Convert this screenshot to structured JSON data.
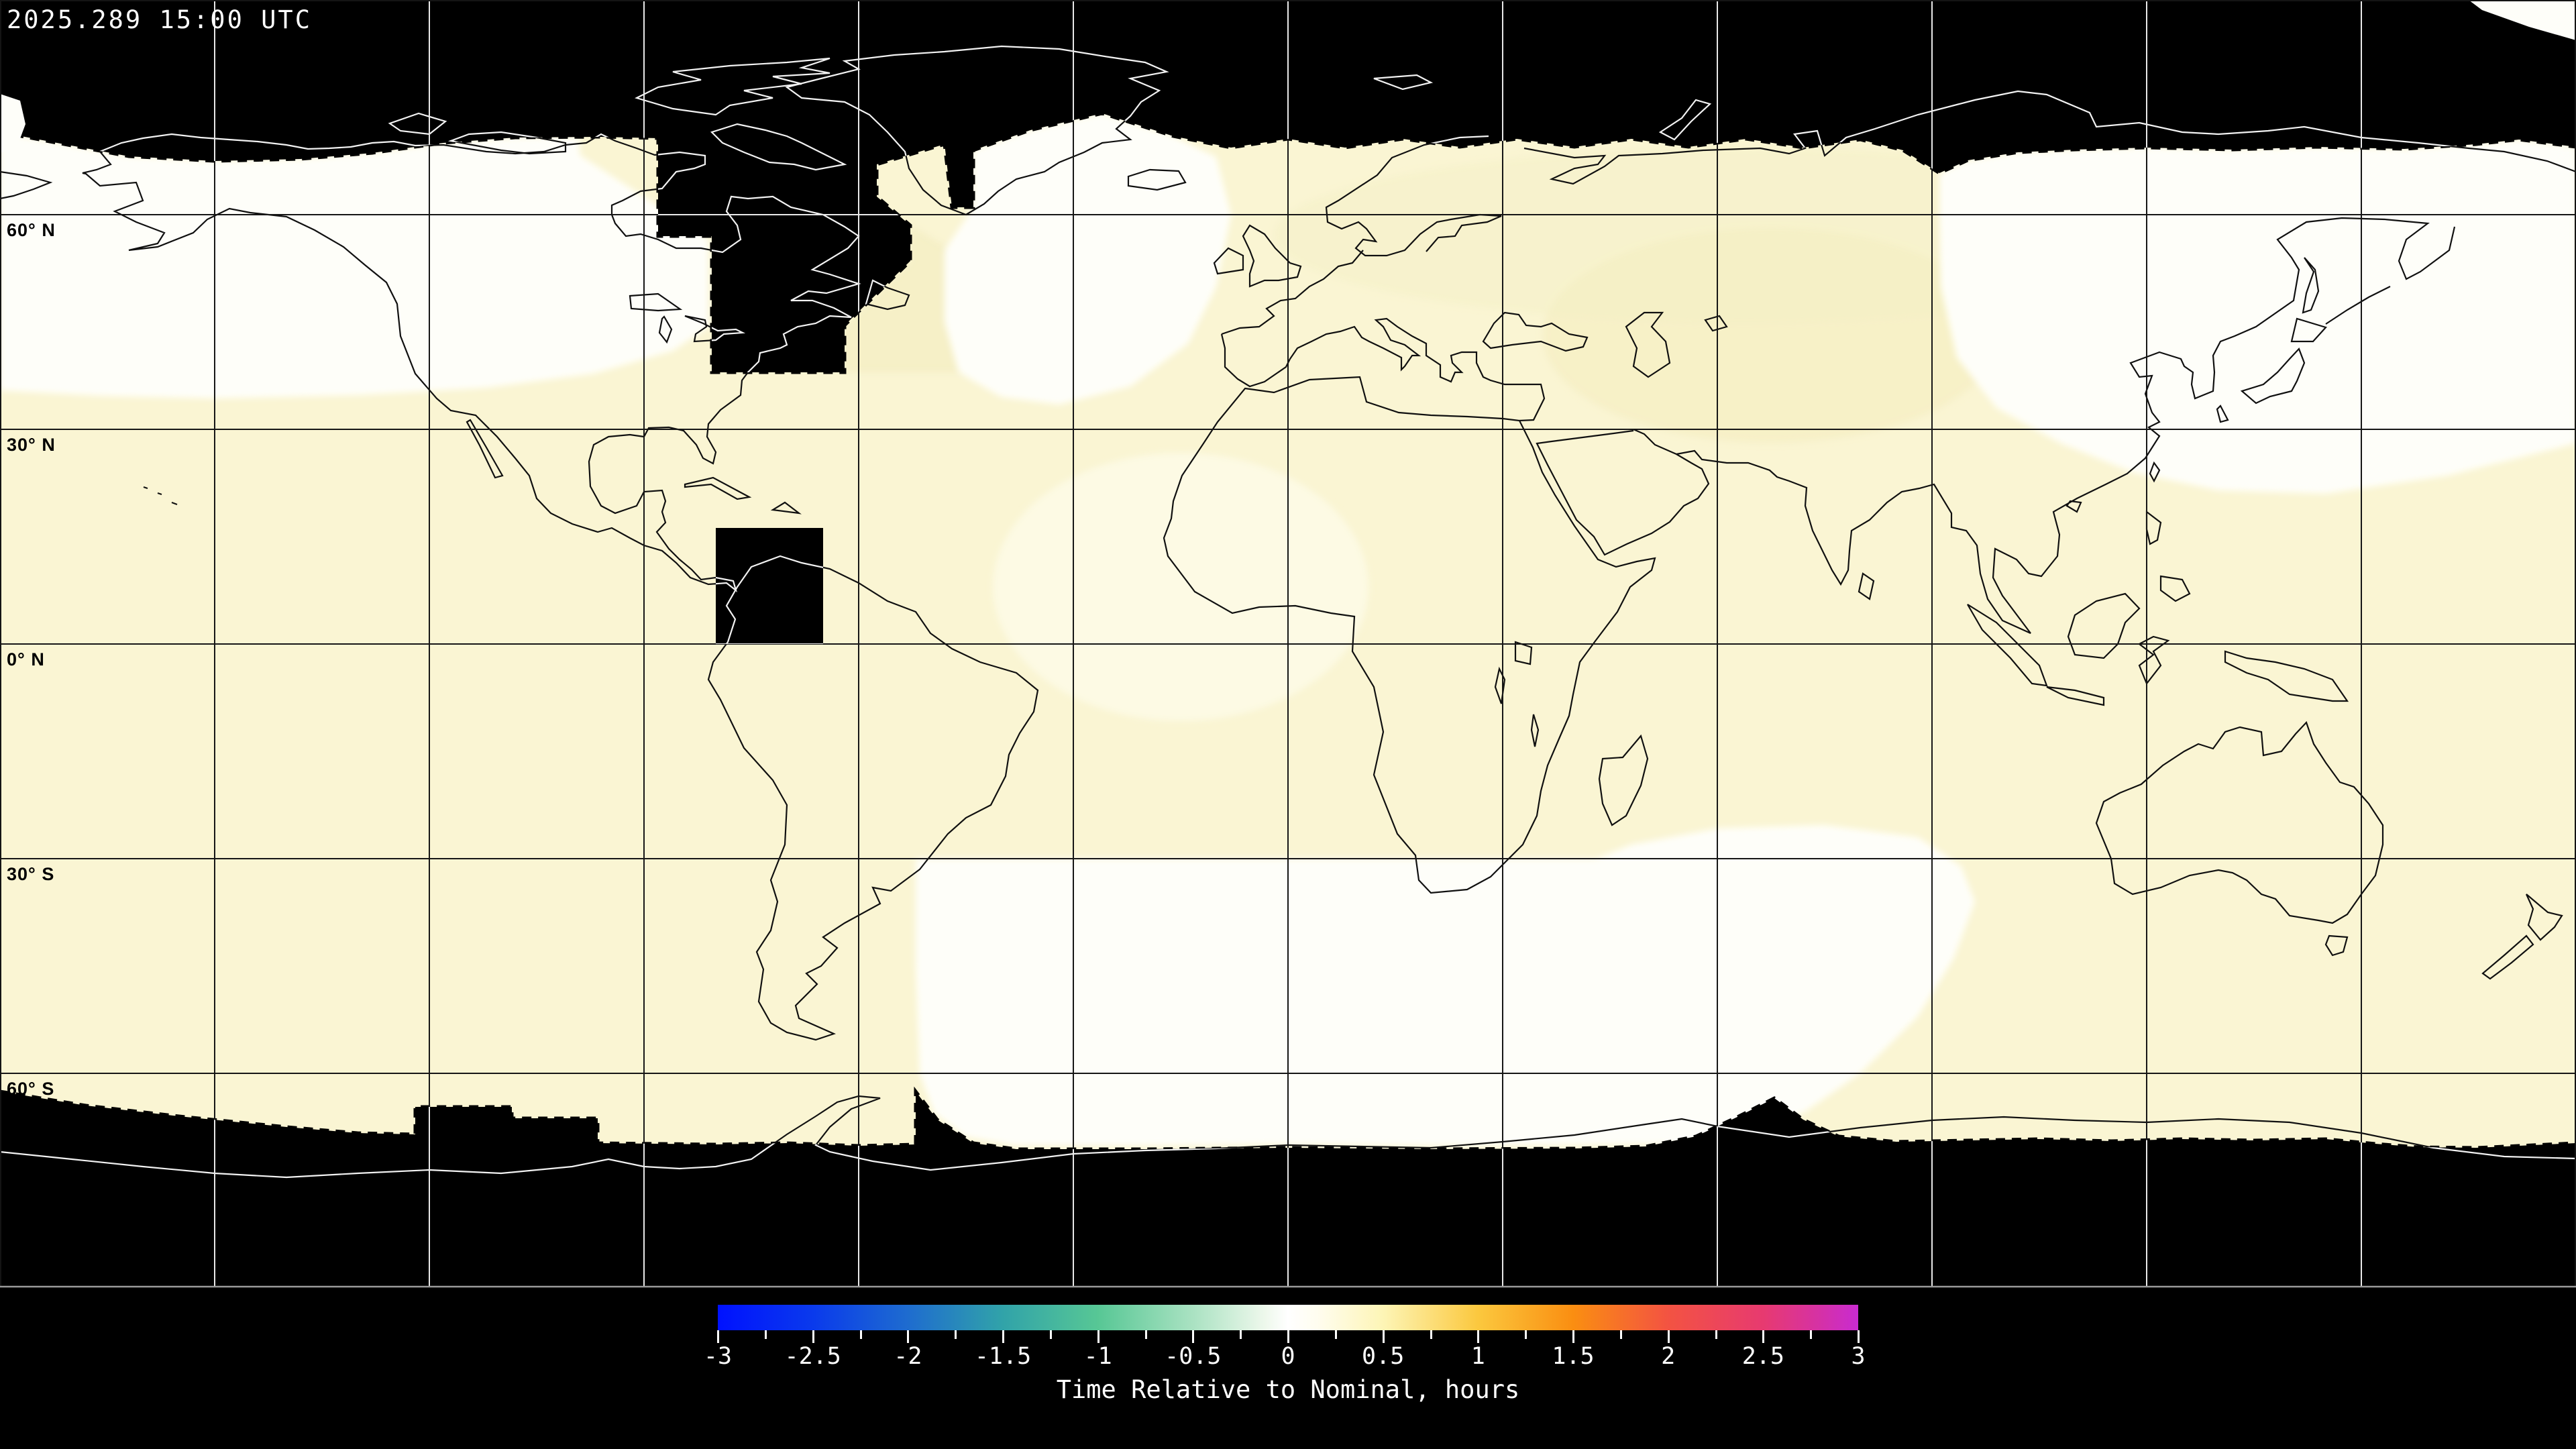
{
  "header": {
    "timestamp": "2025.289 15:00 UTC"
  },
  "map": {
    "projection_gridlines_deg": 30,
    "lat_labels": [
      {
        "text": "60° N"
      },
      {
        "text": "30° N"
      },
      {
        "text": "0° N"
      },
      {
        "text": "30° S"
      },
      {
        "text": "60° S"
      }
    ],
    "colors": {
      "no_data": "#000000",
      "base_cream": "#faf5d3",
      "near_nominal_white": "#fefef9",
      "coast_on_light": "#101010",
      "coast_on_dark": "#f2f2f2",
      "grid_on_light": "#161616",
      "grid_on_dark": "#e9e9e9",
      "map_bottom_border": "#9a9a9a"
    }
  },
  "colorbar": {
    "caption": "Time Relative to Nominal, hours",
    "min": -3,
    "max": 3,
    "major_tick_step": 0.5,
    "minor_tick_step": 0.25,
    "tick_labels": [
      "-3",
      "-2.5",
      "-2",
      "-1.5",
      "-1",
      "-0.5",
      "0",
      "0.5",
      "1",
      "1.5",
      "2",
      "2.5",
      "3"
    ],
    "stops": [
      {
        "v": -3,
        "c": "#0011ff"
      },
      {
        "v": -2.5,
        "c": "#0a3aec"
      },
      {
        "v": -2,
        "c": "#1e6ccf"
      },
      {
        "v": -1.5,
        "c": "#31a3a9"
      },
      {
        "v": -1,
        "c": "#57c795"
      },
      {
        "v": -0.5,
        "c": "#aae2c2"
      },
      {
        "v": -0.12,
        "c": "#eef8ec"
      },
      {
        "v": 0,
        "c": "#ffffff"
      },
      {
        "v": 0.15,
        "c": "#fffdf0"
      },
      {
        "v": 0.5,
        "c": "#fdf5b6"
      },
      {
        "v": 1,
        "c": "#fbc83e"
      },
      {
        "v": 1.5,
        "c": "#fa8e11"
      },
      {
        "v": 2,
        "c": "#f35342"
      },
      {
        "v": 2.5,
        "c": "#e73a70"
      },
      {
        "v": 2.8,
        "c": "#d531a6"
      },
      {
        "v": 3,
        "c": "#c92bd1"
      }
    ]
  }
}
